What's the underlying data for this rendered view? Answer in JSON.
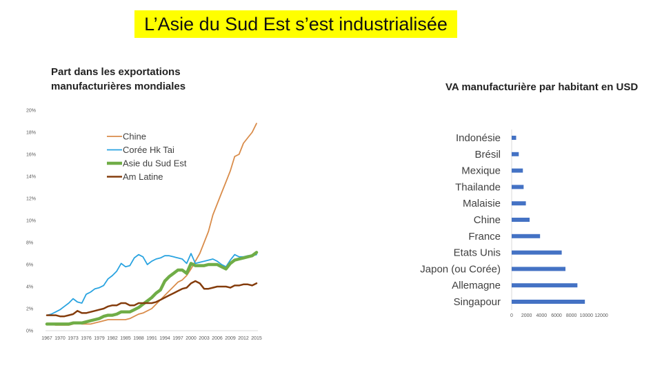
{
  "slide": {
    "title": "L’Asie du Sud Est s’est industrialisée"
  },
  "chart_data": [
    {
      "type": "line",
      "title": "Part dans les exportations manufacturières mondiales",
      "xlabel": "",
      "ylabel": "",
      "ylim": [
        0,
        20
      ],
      "y_ticks": [
        "0%",
        "2%",
        "4%",
        "6%",
        "8%",
        "10%",
        "12%",
        "14%",
        "16%",
        "18%",
        "20%"
      ],
      "x_tick_labels": [
        "1967",
        "1970",
        "1973",
        "1976",
        "1979",
        "1982",
        "1985",
        "1988",
        "1991",
        "1994",
        "1997",
        "2000",
        "2003",
        "2006",
        "2009",
        "2012",
        "2015"
      ],
      "legend_position": "top-center",
      "grid": false,
      "x": [
        1967,
        1968,
        1969,
        1970,
        1971,
        1972,
        1973,
        1974,
        1975,
        1976,
        1977,
        1978,
        1979,
        1980,
        1981,
        1982,
        1983,
        1984,
        1985,
        1986,
        1987,
        1988,
        1989,
        1990,
        1991,
        1992,
        1993,
        1994,
        1995,
        1996,
        1997,
        1998,
        1999,
        2000,
        2001,
        2002,
        2003,
        2004,
        2005,
        2006,
        2007,
        2008,
        2009,
        2010,
        2011,
        2012,
        2013,
        2014,
        2015
      ],
      "series": [
        {
          "name": "Chine",
          "color": "#d98c4a",
          "width": 1.8,
          "values": [
            0.6,
            0.6,
            0.5,
            0.5,
            0.5,
            0.5,
            0.6,
            0.7,
            0.6,
            0.6,
            0.6,
            0.7,
            0.8,
            0.9,
            1.0,
            1.0,
            1.0,
            1.0,
            1.0,
            1.1,
            1.3,
            1.5,
            1.6,
            1.8,
            2.0,
            2.4,
            2.8,
            3.2,
            3.6,
            4.0,
            4.4,
            4.6,
            5.0,
            5.6,
            6.3,
            7.0,
            8.0,
            9.0,
            10.5,
            11.5,
            12.5,
            13.5,
            14.5,
            15.8,
            16.0,
            17.0,
            17.5,
            18.0,
            18.8
          ]
        },
        {
          "name": "Corée Hk Tai",
          "color": "#29a3e0",
          "width": 1.8,
          "values": [
            1.4,
            1.5,
            1.7,
            1.9,
            2.2,
            2.5,
            2.9,
            2.6,
            2.5,
            3.3,
            3.5,
            3.8,
            3.9,
            4.1,
            4.7,
            5.0,
            5.4,
            6.1,
            5.8,
            5.9,
            6.6,
            6.9,
            6.7,
            6.0,
            6.3,
            6.5,
            6.6,
            6.8,
            6.8,
            6.7,
            6.6,
            6.5,
            6.1,
            7.0,
            6.1,
            6.2,
            6.3,
            6.4,
            6.5,
            6.3,
            6.0,
            5.8,
            6.4,
            6.9,
            6.7,
            6.7,
            6.8,
            6.8,
            6.9
          ]
        },
        {
          "name": "Asie du Sud Est",
          "color": "#70ad47",
          "width": 4.5,
          "values": [
            0.6,
            0.6,
            0.6,
            0.6,
            0.6,
            0.6,
            0.7,
            0.7,
            0.7,
            0.8,
            0.9,
            1.0,
            1.1,
            1.3,
            1.4,
            1.4,
            1.5,
            1.7,
            1.7,
            1.7,
            1.9,
            2.1,
            2.4,
            2.7,
            3.0,
            3.4,
            3.7,
            4.5,
            4.9,
            5.2,
            5.5,
            5.5,
            5.2,
            6.1,
            5.9,
            5.9,
            5.9,
            6.0,
            6.0,
            6.0,
            5.8,
            5.6,
            6.1,
            6.4,
            6.5,
            6.6,
            6.7,
            6.8,
            7.1
          ]
        },
        {
          "name": "Am Latine",
          "color": "#843c0c",
          "width": 2.5,
          "values": [
            1.4,
            1.4,
            1.4,
            1.3,
            1.3,
            1.4,
            1.5,
            1.8,
            1.6,
            1.6,
            1.7,
            1.8,
            1.9,
            2.0,
            2.2,
            2.3,
            2.3,
            2.5,
            2.5,
            2.3,
            2.3,
            2.5,
            2.5,
            2.5,
            2.5,
            2.6,
            2.8,
            3.0,
            3.2,
            3.4,
            3.6,
            3.8,
            3.9,
            4.3,
            4.5,
            4.3,
            3.8,
            3.8,
            3.9,
            4.0,
            4.0,
            4.0,
            3.9,
            4.1,
            4.1,
            4.2,
            4.2,
            4.1,
            4.3
          ]
        }
      ]
    },
    {
      "type": "bar",
      "orientation": "horizontal",
      "title": "VA manufacturière par habitant en USD",
      "xlim": [
        0,
        12000
      ],
      "x_ticks": [
        "0",
        "2000",
        "4000",
        "6000",
        "8000",
        "10000",
        "12000"
      ],
      "bar_color": "#4472c4",
      "categories": [
        "Indonésie",
        "Brésil",
        "Mexique",
        "Thailande",
        "Malaisie",
        "Chine",
        "France",
        "Etats Unis",
        "Japon (ou Corée)",
        "Allemagne",
        "Singapour"
      ],
      "values": [
        600,
        950,
        1500,
        1600,
        1900,
        2400,
        3800,
        6700,
        7200,
        8800,
        9800
      ]
    }
  ]
}
